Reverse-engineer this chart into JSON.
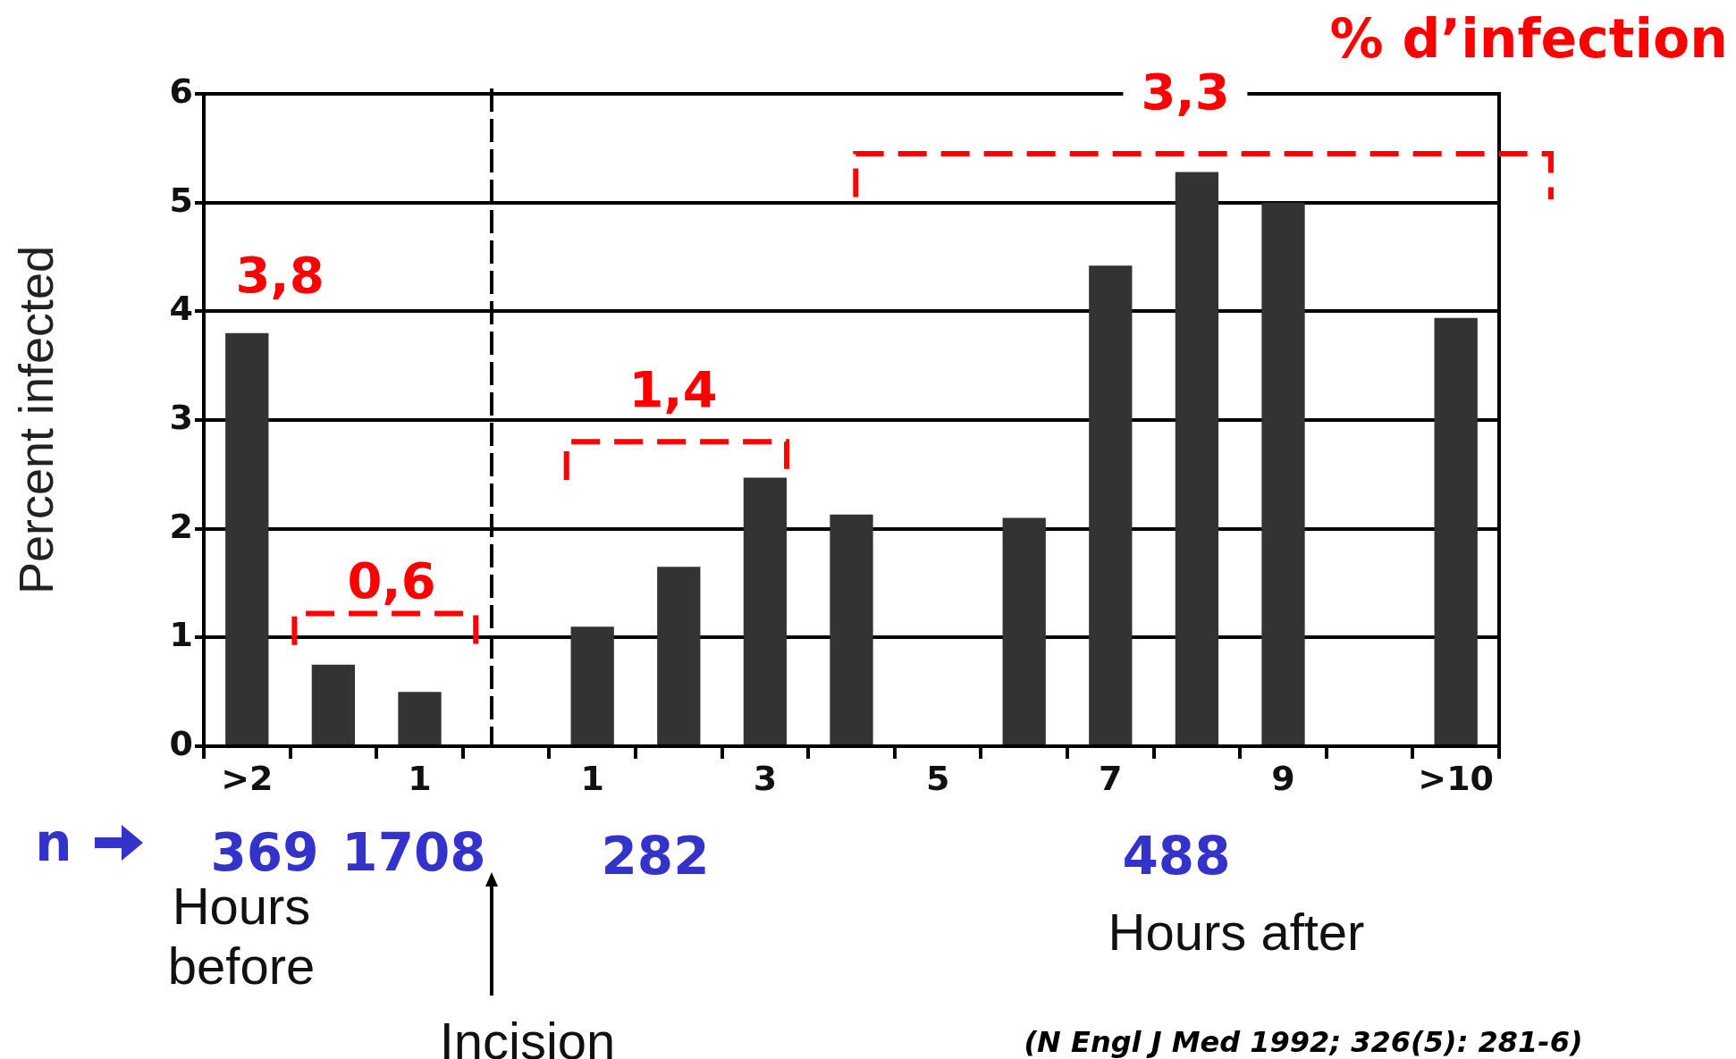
{
  "chart_data": {
    "type": "bar",
    "title": "% d’infection",
    "ylabel": "Percent infected",
    "categories": [
      ">2",
      null,
      "1",
      null,
      "1",
      null,
      "3",
      null,
      "5",
      null,
      "7",
      null,
      "9",
      null,
      ">10"
    ],
    "values": [
      3.8,
      0.75,
      0.5,
      null,
      1.1,
      1.65,
      2.47,
      2.13,
      null,
      2.1,
      4.42,
      5.28,
      5.0,
      null,
      3.94
    ],
    "color": "#333333",
    "ylim": [
      0,
      6
    ],
    "yticks": [
      0,
      1,
      2,
      3,
      4,
      5,
      6
    ],
    "grid": "y",
    "annotations": [
      "3,8",
      "0,6",
      "1,4",
      "3,3",
      "n",
      "369",
      "1708",
      "282",
      "488",
      "Hours before",
      "Hours after",
      "(N Engl J Med 1992; 326(5): 281-6)",
      "Incision"
    ]
  }
}
